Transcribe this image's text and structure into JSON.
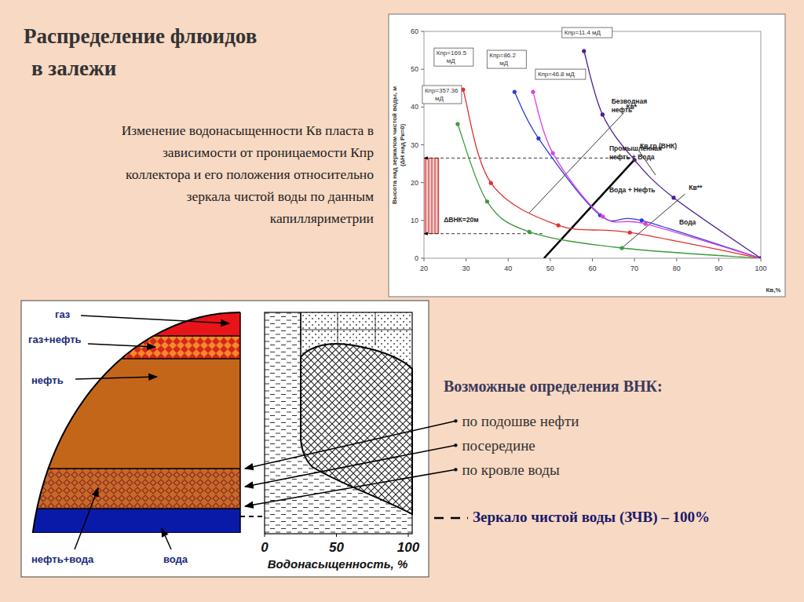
{
  "chart_data": {
    "type": "line",
    "xlabel": "Кв,%",
    "ylabel": [
      "Высота над зеркалом чистой воды, м",
      "(ΔH над Pк=0)"
    ],
    "xlim": [
      20,
      100
    ],
    "xticks": [
      20,
      30,
      40,
      50,
      60,
      70,
      80,
      90,
      100
    ],
    "ylim": [
      0,
      60
    ],
    "yticks": [
      0,
      10,
      20,
      30,
      40,
      50,
      60
    ],
    "grid": false,
    "marker": "circle",
    "series": [
      {
        "name": "Кпр=357.36 мД",
        "color": "#3c9a3c",
        "x": [
          28,
          35,
          45,
          67,
          100
        ],
        "values": [
          35.5,
          15,
          7,
          2.7,
          0
        ]
      },
      {
        "name": "Кпр=169.5 мД",
        "color": "#e03030",
        "x": [
          29.3,
          35.9,
          51.9,
          68.9,
          100
        ],
        "values": [
          44.6,
          19.9,
          8.7,
          6.8,
          0
        ]
      },
      {
        "name": "Кпр=86.2 мД",
        "color": "#2a3fd0",
        "x": [
          41.5,
          47.2,
          61.8,
          71.7,
          100
        ],
        "values": [
          44,
          31.7,
          11.4,
          10,
          0
        ]
      },
      {
        "name": "Кпр=46.8 мД",
        "color": "#e040e0",
        "x": [
          45.9,
          50.6,
          62.5,
          72.6,
          100
        ],
        "values": [
          44,
          27.8,
          11,
          9.1,
          0
        ]
      },
      {
        "name": "Кпр=11.4 мД",
        "color": "#4b1f8a",
        "x": [
          58,
          62.4,
          70,
          79.3,
          100
        ],
        "values": [
          54.8,
          38,
          26,
          16,
          0
        ]
      }
    ],
    "annotations": [
      {
        "text": [
          "Безводная",
          "нефть"
        ],
        "x": 64.5,
        "y": 41
      },
      {
        "text": [
          "Кв*"
        ],
        "x": 68,
        "y": 39.5
      },
      {
        "text": [
          "Промышленная",
          "нефть + Вода"
        ],
        "x": 64,
        "y": 28.5
      },
      {
        "text": [
          "Кв.гр (ВНК)"
        ],
        "x": 71.3,
        "y": 29
      },
      {
        "text": [
          "Вода + Нефть"
        ],
        "x": 64,
        "y": 17.5
      },
      {
        "text": [
          "Кв**"
        ],
        "x": 82.9,
        "y": 18
      },
      {
        "text": [
          "Вода"
        ],
        "x": 80.6,
        "y": 9
      },
      {
        "text": [
          "ΔВНК=20м"
        ],
        "x": 24.7,
        "y": 9.5
      }
    ],
    "lines": [
      {
        "x": [
          48.5,
          70
        ],
        "y": [
          0,
          26.1
        ],
        "line_style": "thick"
      },
      {
        "x": [
          67.5,
          45
        ],
        "y": [
          38.5,
          12
        ],
        "line_style": "thin"
      },
      {
        "x": [
          82,
          67
        ],
        "y": [
          17,
          2.7
        ],
        "line_style": "thin"
      },
      {
        "x": [
          71,
          75
        ],
        "y": [
          28.5,
          22
        ],
        "line_style": "thin"
      }
    ],
    "levels": [
      {
        "y": 26.5,
        "x": [
          20,
          70
        ]
      },
      {
        "y": 6.5,
        "x": [
          20,
          48.5
        ]
      }
    ],
    "band": {
      "x": [
        20,
        23.5
      ],
      "y": [
        6.5,
        26.5
      ]
    }
  },
  "slide": {
    "title": [
      "Распределение флюидов",
      "в залежи"
    ],
    "caption": [
      "Изменение водонасыщенности Кв пласта в",
      "зависимости от проницаемости Кпр",
      "коллектора и его положения относительно",
      "зеркала чистой воды по данным",
      "капилляриметрии"
    ],
    "layers": [
      "газ",
      "газ+нефть",
      "нефть",
      "нефть+вода",
      "вода"
    ],
    "diagram_axis": {
      "label": "Водонасыщенность, %",
      "ticks": [
        0,
        50,
        100
      ]
    },
    "vnk_heading": "Возможные определения ВНК:",
    "vnk_items": [
      "• по подошве нефти",
      "• посередине",
      "• по кровле воды"
    ],
    "mirror": "Зеркало чистой воды (ЗЧВ) – 100%"
  }
}
